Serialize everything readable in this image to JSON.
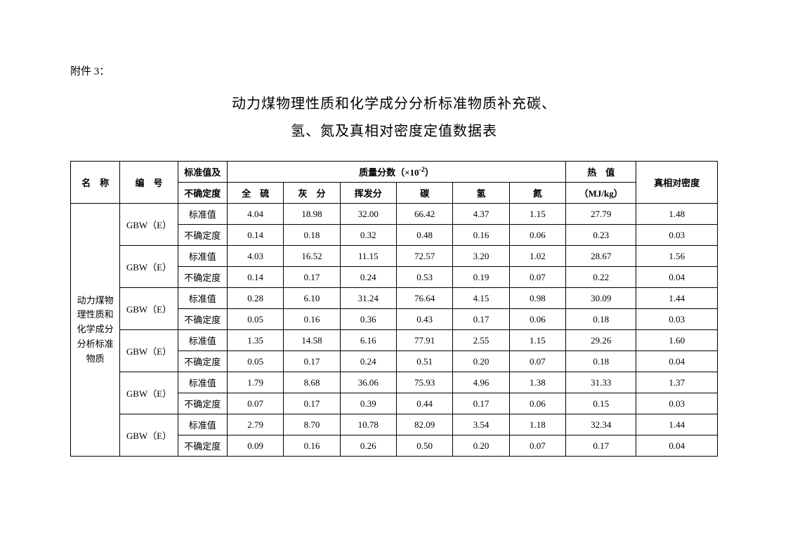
{
  "attachment_label": "附件 3：",
  "title_line1": "动力煤物理性质和化学成分分析标准物质补充碳、",
  "title_line2": "氢、氮及真相对密度定值数据表",
  "header": {
    "name": "名　称",
    "code": "编　号",
    "std_and_unc": "标准值及",
    "unc": "不确定度",
    "mass_fraction_prefix": "质量分数（×10",
    "mass_fraction_exp": "-2",
    "mass_fraction_suffix": "）",
    "heat": "热　值",
    "heat_unit": "（MJ/kg）",
    "density": "真相对密度",
    "cols": {
      "sulfur": "全　硫",
      "ash": "灰　分",
      "volatile": "挥发分",
      "carbon": "碳",
      "hydrogen": "氢",
      "nitrogen": "氮"
    }
  },
  "row_label": "动力煤物理性质和化学成分分析标准物质",
  "std_label": "标准值",
  "unc_label": "不确定度",
  "code_label": "GBW（E）",
  "samples": [
    {
      "std": [
        "4.04",
        "18.98",
        "32.00",
        "66.42",
        "4.37",
        "1.15",
        "27.79",
        "1.48"
      ],
      "unc": [
        "0.14",
        "0.18",
        "0.32",
        "0.48",
        "0.16",
        "0.06",
        "0.23",
        "0.03"
      ]
    },
    {
      "std": [
        "4.03",
        "16.52",
        "11.15",
        "72.57",
        "3.20",
        "1.02",
        "28.67",
        "1.56"
      ],
      "unc": [
        "0.14",
        "0.17",
        "0.24",
        "0.53",
        "0.19",
        "0.07",
        "0.22",
        "0.04"
      ]
    },
    {
      "std": [
        "0.28",
        "6.10",
        "31.24",
        "76.64",
        "4.15",
        "0.98",
        "30.09",
        "1.44"
      ],
      "unc": [
        "0.05",
        "0.16",
        "0.36",
        "0.43",
        "0.17",
        "0.06",
        "0.18",
        "0.03"
      ]
    },
    {
      "std": [
        "1.35",
        "14.58",
        "6.16",
        "77.91",
        "2.55",
        "1.15",
        "29.26",
        "1.60"
      ],
      "unc": [
        "0.05",
        "0.17",
        "0.24",
        "0.51",
        "0.20",
        "0.07",
        "0.18",
        "0.04"
      ]
    },
    {
      "std": [
        "1.79",
        "8.68",
        "36.06",
        "75.93",
        "4.96",
        "1.38",
        "31.33",
        "1.37"
      ],
      "unc": [
        "0.07",
        "0.17",
        "0.39",
        "0.44",
        "0.17",
        "0.06",
        "0.15",
        "0.03"
      ]
    },
    {
      "std": [
        "2.79",
        "8.70",
        "10.78",
        "82.09",
        "3.54",
        "1.18",
        "32.34",
        "1.44"
      ],
      "unc": [
        "0.09",
        "0.16",
        "0.26",
        "0.50",
        "0.20",
        "0.07",
        "0.17",
        "0.04"
      ]
    }
  ],
  "colwidths": {
    "name": 70,
    "code": 82,
    "type": 70,
    "sulfur": 80,
    "ash": 80,
    "volatile": 80,
    "carbon": 80,
    "hydrogen": 80,
    "nitrogen": 80,
    "heat": 100,
    "density": 115
  }
}
